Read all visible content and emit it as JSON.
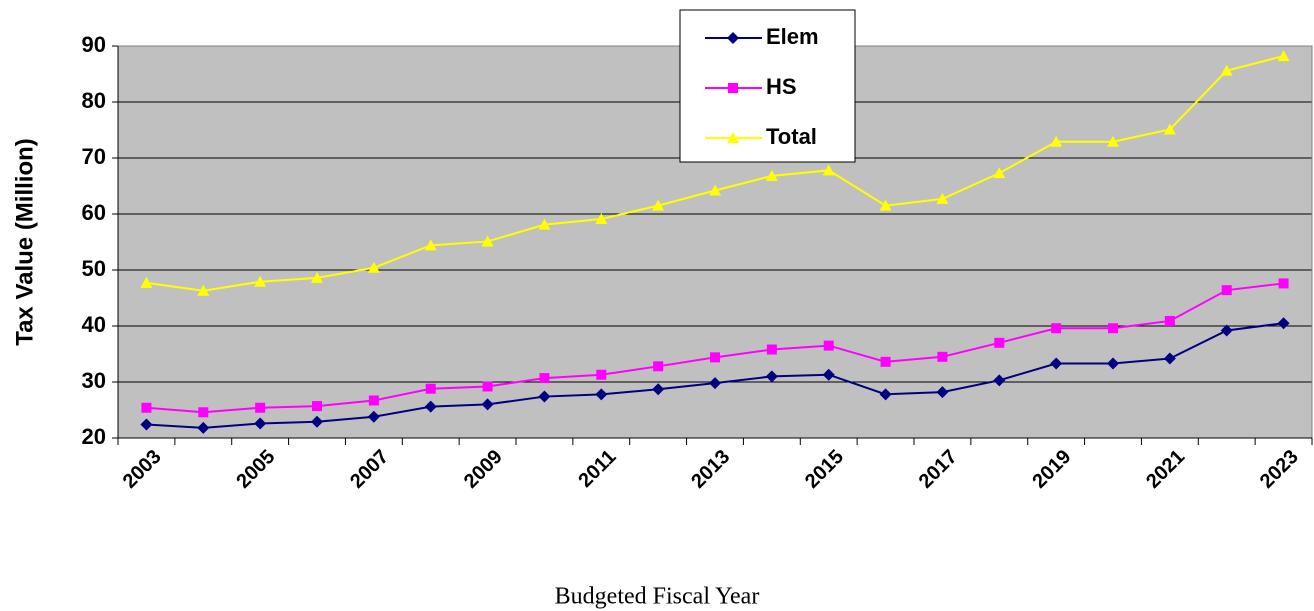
{
  "chart_data": {
    "type": "line",
    "y_label": "Tax Value (Million)",
    "x_label": "Budgeted Fiscal Year",
    "categories": [
      "2003",
      null,
      "2005",
      null,
      "2007",
      null,
      "2009",
      null,
      "2011",
      null,
      "2013",
      null,
      "2015",
      null,
      "2017",
      null,
      "2019",
      null,
      "2021",
      null,
      "2023"
    ],
    "series": [
      {
        "name": "Elem",
        "color": "#000080",
        "marker": "diamond",
        "values": [
          22.4,
          21.8,
          22.6,
          22.9,
          23.8,
          25.6,
          26.0,
          27.4,
          27.8,
          28.7,
          29.8,
          31.0,
          31.3,
          27.8,
          28.2,
          30.3,
          33.3,
          33.3,
          34.2,
          39.2,
          40.5
        ]
      },
      {
        "name": "HS",
        "color": "#ff00ff",
        "marker": "square",
        "values": [
          25.4,
          24.6,
          25.4,
          25.7,
          26.7,
          28.8,
          29.2,
          30.7,
          31.3,
          32.8,
          34.4,
          35.8,
          36.5,
          33.6,
          34.5,
          37.0,
          39.6,
          39.6,
          40.9,
          46.4,
          47.6
        ]
      },
      {
        "name": "Total",
        "color": "#ffff00",
        "marker": "triangle",
        "values": [
          47.7,
          46.3,
          47.9,
          48.6,
          50.4,
          54.4,
          55.1,
          58.1,
          59.1,
          61.5,
          64.2,
          66.8,
          67.8,
          61.5,
          62.7,
          67.3,
          72.9,
          72.9,
          75.1,
          85.6,
          88.2
        ]
      }
    ],
    "ylim": [
      20,
      90
    ],
    "yticks": [
      20,
      30,
      40,
      50,
      60,
      70,
      80,
      90
    ],
    "grid": true,
    "background": "#c0c0c0"
  }
}
